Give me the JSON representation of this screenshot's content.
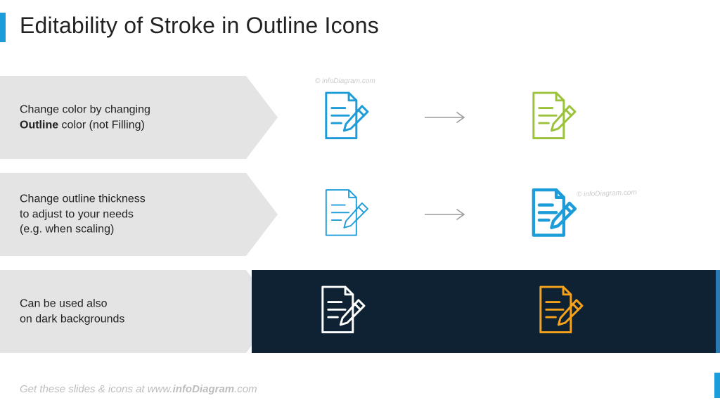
{
  "title": "Editability of Stroke in Outline Icons",
  "rows": [
    {
      "text_html": "Change color by changing<br><b>Outline</b> color (not Filling)",
      "band_bg": "#E4E4E4",
      "demo_bg": "#FFFFFF",
      "icon_left": {
        "stroke": "#1C9CD9",
        "stroke_width": 2.2
      },
      "icon_right": {
        "stroke": "#9BC23B",
        "stroke_width": 2.2
      },
      "show_arrow": true,
      "arrow_color": "#9a9a9a"
    },
    {
      "text_html": "Change outline thickness<br>to adjust to your needs<br>(e.g. when scaling)",
      "band_bg": "#E4E4E4",
      "demo_bg": "#FFFFFF",
      "icon_left": {
        "stroke": "#1C9CD9",
        "stroke_width": 1.4
      },
      "icon_right": {
        "stroke": "#1C9CD9",
        "stroke_width": 3.2
      },
      "show_arrow": true,
      "arrow_color": "#9a9a9a"
    },
    {
      "text_html": "Can be used also<br>on dark backgrounds",
      "band_bg": "#E4E4E4",
      "demo_bg": "#0F2233",
      "icon_left": {
        "stroke": "#FFFFFF",
        "stroke_width": 2.2
      },
      "icon_right": {
        "stroke": "#F6A21B",
        "stroke_width": 2.2
      },
      "show_arrow": false,
      "arrow_color": "#9a9a9a"
    }
  ],
  "watermark": "© infoDiagram.com",
  "footer_html": "Get these slides & icons at www.<b>infoDiagram</b>.com",
  "colors": {
    "accent": "#1C9CD9",
    "band": "#E4E4E4",
    "dark_demo": "#0F2233"
  }
}
